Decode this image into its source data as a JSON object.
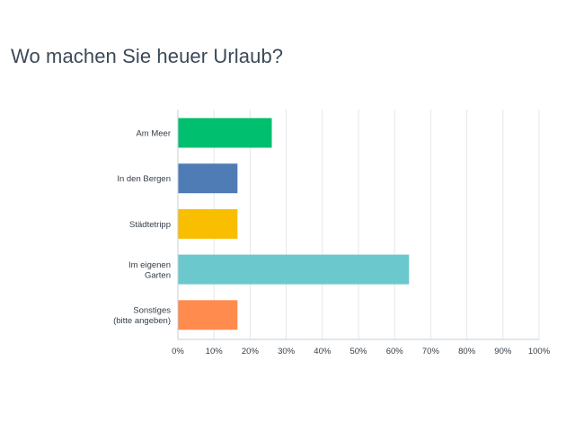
{
  "chart_data": {
    "type": "bar",
    "orientation": "horizontal",
    "title": "Wo machen Sie heuer Urlaub?",
    "xlabel": "",
    "ylabel": "",
    "xlim": [
      0,
      100
    ],
    "grid": true,
    "legend": "none",
    "categories": [
      [
        "Am Meer"
      ],
      [
        "In den Bergen"
      ],
      [
        "Städtetripp"
      ],
      [
        "Im eigenen",
        "Garten"
      ],
      [
        "Sonstiges",
        "(bitte angeben)"
      ]
    ],
    "values": [
      26,
      16.5,
      16.5,
      64,
      16.5
    ],
    "colors": [
      "#00bf6f",
      "#507cb6",
      "#f9be00",
      "#6bc8cd",
      "#ff8b4f"
    ],
    "ticks": [
      "0%",
      "10%",
      "20%",
      "30%",
      "40%",
      "50%",
      "60%",
      "70%",
      "80%",
      "90%",
      "100%"
    ]
  }
}
